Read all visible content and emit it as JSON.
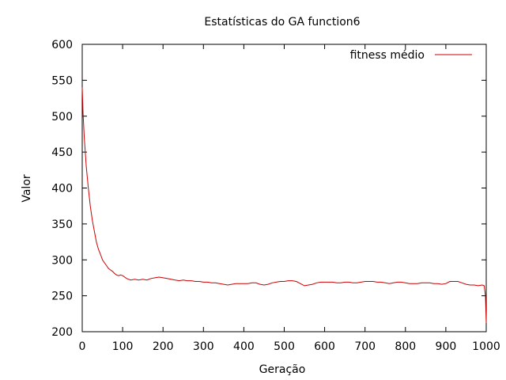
{
  "chart_data": {
    "type": "line",
    "title": "Estatísticas do GA function6",
    "xlabel": "Geração",
    "ylabel": "Valor",
    "xlim": [
      0,
      1000
    ],
    "ylim": [
      200,
      600
    ],
    "x_ticks": [
      "0",
      "100",
      "200",
      "300",
      "400",
      "500",
      "600",
      "700",
      "800",
      "900",
      "1000"
    ],
    "y_ticks": [
      "200",
      "250",
      "300",
      "350",
      "400",
      "450",
      "500",
      "550",
      "600"
    ],
    "grid": false,
    "legend_position": "top-right",
    "series": [
      {
        "name": "fitness médio",
        "color": "#cc0000",
        "points": [
          [
            0,
            540
          ],
          [
            2,
            505
          ],
          [
            5,
            470
          ],
          [
            10,
            430
          ],
          [
            15,
            400
          ],
          [
            20,
            375
          ],
          [
            25,
            355
          ],
          [
            30,
            340
          ],
          [
            35,
            325
          ],
          [
            40,
            315
          ],
          [
            45,
            308
          ],
          [
            50,
            300
          ],
          [
            55,
            296
          ],
          [
            60,
            292
          ],
          [
            65,
            288
          ],
          [
            70,
            286
          ],
          [
            75,
            284
          ],
          [
            80,
            281
          ],
          [
            85,
            279
          ],
          [
            90,
            278
          ],
          [
            95,
            279
          ],
          [
            100,
            278
          ],
          [
            105,
            276
          ],
          [
            110,
            274
          ],
          [
            115,
            273
          ],
          [
            120,
            272
          ],
          [
            130,
            273
          ],
          [
            140,
            272
          ],
          [
            150,
            273
          ],
          [
            160,
            272
          ],
          [
            170,
            274
          ],
          [
            180,
            275
          ],
          [
            190,
            276
          ],
          [
            200,
            275
          ],
          [
            210,
            274
          ],
          [
            220,
            273
          ],
          [
            230,
            272
          ],
          [
            240,
            271
          ],
          [
            250,
            272
          ],
          [
            260,
            271
          ],
          [
            270,
            271
          ],
          [
            280,
            270
          ],
          [
            290,
            270
          ],
          [
            300,
            269
          ],
          [
            310,
            269
          ],
          [
            320,
            268
          ],
          [
            330,
            268
          ],
          [
            340,
            267
          ],
          [
            350,
            266
          ],
          [
            360,
            265
          ],
          [
            370,
            266
          ],
          [
            380,
            267
          ],
          [
            390,
            267
          ],
          [
            400,
            267
          ],
          [
            410,
            267
          ],
          [
            420,
            268
          ],
          [
            430,
            268
          ],
          [
            440,
            266
          ],
          [
            450,
            265
          ],
          [
            460,
            266
          ],
          [
            470,
            268
          ],
          [
            480,
            269
          ],
          [
            490,
            270
          ],
          [
            500,
            270
          ],
          [
            510,
            271
          ],
          [
            520,
            271
          ],
          [
            530,
            270
          ],
          [
            540,
            267
          ],
          [
            550,
            264
          ],
          [
            560,
            265
          ],
          [
            570,
            266
          ],
          [
            580,
            268
          ],
          [
            590,
            269
          ],
          [
            600,
            269
          ],
          [
            610,
            269
          ],
          [
            620,
            269
          ],
          [
            630,
            268
          ],
          [
            640,
            268
          ],
          [
            650,
            269
          ],
          [
            660,
            269
          ],
          [
            670,
            268
          ],
          [
            680,
            268
          ],
          [
            690,
            269
          ],
          [
            700,
            270
          ],
          [
            710,
            270
          ],
          [
            720,
            270
          ],
          [
            730,
            269
          ],
          [
            740,
            269
          ],
          [
            750,
            268
          ],
          [
            760,
            267
          ],
          [
            770,
            268
          ],
          [
            780,
            269
          ],
          [
            790,
            269
          ],
          [
            800,
            268
          ],
          [
            810,
            267
          ],
          [
            820,
            267
          ],
          [
            830,
            267
          ],
          [
            840,
            268
          ],
          [
            850,
            268
          ],
          [
            860,
            268
          ],
          [
            870,
            267
          ],
          [
            880,
            267
          ],
          [
            890,
            266
          ],
          [
            900,
            267
          ],
          [
            910,
            270
          ],
          [
            920,
            270
          ],
          [
            930,
            270
          ],
          [
            940,
            268
          ],
          [
            950,
            266
          ],
          [
            960,
            265
          ],
          [
            970,
            265
          ],
          [
            980,
            264
          ],
          [
            990,
            265
          ],
          [
            995,
            264
          ],
          [
            998,
            250
          ],
          [
            1000,
            212
          ]
        ]
      }
    ]
  }
}
